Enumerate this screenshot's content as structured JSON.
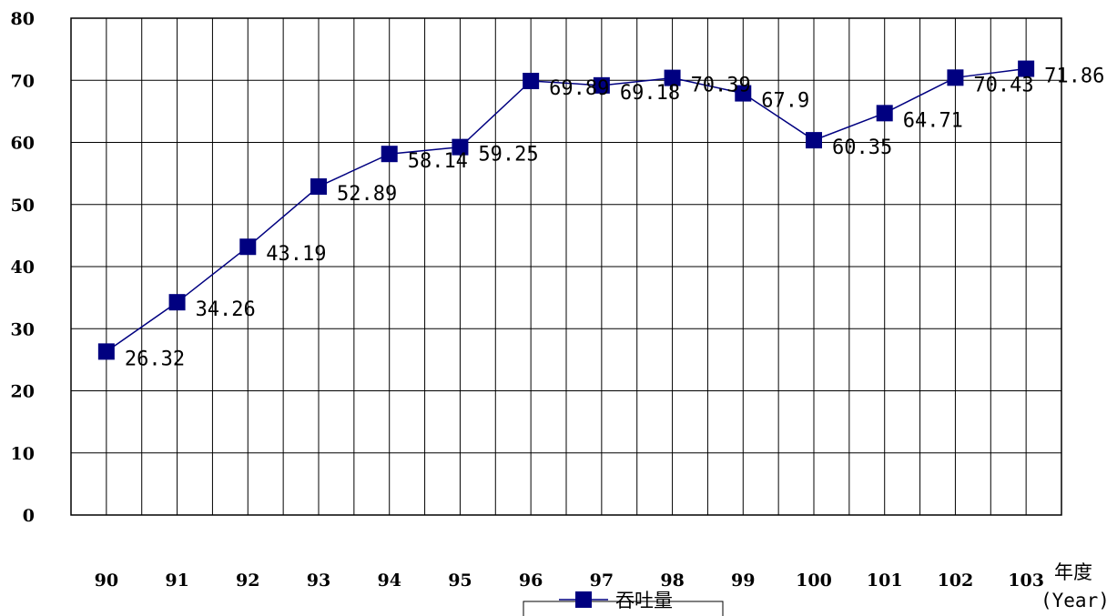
{
  "chart_data": {
    "type": "line",
    "categories": [
      "90",
      "91",
      "92",
      "93",
      "94",
      "95",
      "96",
      "97",
      "98",
      "99",
      "100",
      "101",
      "102",
      "103"
    ],
    "series": [
      {
        "name": "吞吐量",
        "values": [
          26.32,
          34.26,
          43.19,
          52.89,
          58.14,
          59.25,
          69.89,
          69.18,
          70.39,
          67.9,
          60.35,
          64.71,
          70.43,
          71.86
        ],
        "labels": [
          "26.32",
          "34.26",
          "43.19",
          "52.89",
          "58.14",
          "59.25",
          "69.89",
          "69.18",
          "70.39",
          "67.9",
          "60.35",
          "64.71",
          "70.43",
          "71.86"
        ],
        "color": "#000080"
      }
    ],
    "ylim": [
      0,
      80
    ],
    "yticks": [
      "0",
      "10",
      "20",
      "30",
      "40",
      "50",
      "60",
      "70",
      "80"
    ],
    "xlabel": "年度",
    "xlabel_sub": "(Year)",
    "ylabel": "",
    "grid": true,
    "legend": "bottom-center",
    "colors": {
      "line": "#000080",
      "marker": "#000080",
      "grid": "#000000"
    }
  }
}
